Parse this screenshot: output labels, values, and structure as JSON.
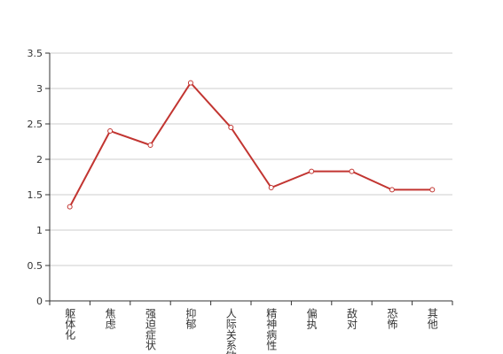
{
  "chart_data": {
    "type": "line",
    "categories": [
      "躯体化",
      "焦虑",
      "强迫症状",
      "抑郁",
      "人际关系敏感",
      "精神病性",
      "偏执",
      "敌对",
      "恐怖",
      "其他"
    ],
    "series": [
      {
        "color": "#c23531",
        "values": [
          1.33,
          2.4,
          2.2,
          3.08,
          2.45,
          1.6,
          1.83,
          1.83,
          1.57,
          1.57
        ]
      }
    ],
    "ylim": [
      0,
      3.5
    ],
    "yticks": [
      0,
      0.5,
      1,
      1.5,
      2,
      2.5,
      3,
      3.5
    ],
    "grid": true
  }
}
